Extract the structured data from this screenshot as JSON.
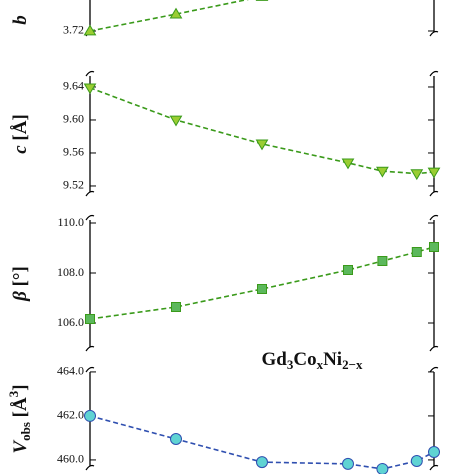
{
  "chart_data": [
    {
      "type": "line",
      "ylabel": [
        {
          "text": "b",
          "pos": "italic"
        }
      ],
      "x": [
        0,
        0.5,
        1.0
      ],
      "xlim": [
        0,
        2
      ],
      "ylim": [
        3.709,
        3.77
      ],
      "yticks": [
        3.72
      ],
      "series": [
        {
          "color": "#3a9a1a",
          "marker": "triangle-up",
          "marker_color": "#9acd32",
          "values": [
            3.72,
            3.7406,
            3.762
          ]
        }
      ]
    },
    {
      "type": "line",
      "ylabel": [
        {
          "text": "c",
          "pos": "italic"
        },
        {
          "text": " [Å]",
          "pos": "normal"
        }
      ],
      "x": [
        0,
        0.5,
        1.0,
        1.5,
        1.7,
        1.9,
        2.0
      ],
      "xlim": [
        0,
        2
      ],
      "ylim": [
        9.503,
        9.663
      ],
      "yticks": [
        9.64,
        {
          "value": 9.6,
          "label": "9.60"
        },
        9.56,
        9.52
      ],
      "series": [
        {
          "color": "#3a9a1a",
          "marker": "triangle-down",
          "marker_color": "#9acd32",
          "values": [
            9.639,
            9.6,
            9.571,
            9.548,
            9.538,
            9.535,
            9.537
          ]
        }
      ]
    },
    {
      "type": "line",
      "ylabel": [
        {
          "text": "β",
          "pos": "italic"
        },
        {
          "text": " [°]",
          "pos": "normal"
        }
      ],
      "x": [
        0,
        0.5,
        1.0,
        1.5,
        1.7,
        1.9,
        2.0
      ],
      "xlim": [
        0,
        2
      ],
      "ylim": [
        104.72,
        110.44
      ],
      "yticks": [
        {
          "value": 110,
          "label": "110.0"
        },
        {
          "value": 108,
          "label": "108.0"
        },
        {
          "value": 106,
          "label": "106.0"
        }
      ],
      "series": [
        {
          "color": "#3a9a1a",
          "marker": "square",
          "marker_color": "#5cb85c",
          "values": [
            106.16,
            106.64,
            107.36,
            108.12,
            108.48,
            108.84,
            109.04
          ]
        }
      ],
      "annotation": [
        {
          "text": "Gd",
          "pos": "normal"
        },
        {
          "text": "3",
          "pos": "sub"
        },
        {
          "text": "Co",
          "pos": "normal"
        },
        {
          "text": "x",
          "pos": "sub"
        },
        {
          "text": "Ni",
          "pos": "normal"
        },
        {
          "text": "2−x",
          "pos": "sub"
        }
      ]
    },
    {
      "type": "line",
      "ylabel": [
        {
          "text": "V",
          "pos": "italic"
        },
        {
          "text": "obs",
          "pos": "sub"
        },
        {
          "text": " [Å",
          "pos": "normal"
        },
        {
          "text": "3",
          "pos": "sup"
        },
        {
          "text": "]",
          "pos": "normal"
        }
      ],
      "x": [
        0,
        0.5,
        1.0,
        1.5,
        1.7,
        1.9,
        2.0
      ],
      "xlim": [
        0,
        2
      ],
      "ylim": [
        459.36,
        464.36
      ],
      "yticks": [
        {
          "value": 464,
          "label": "464.0"
        },
        {
          "value": 462,
          "label": "462.0"
        },
        {
          "value": 460,
          "label": "460.0"
        }
      ],
      "series": [
        {
          "color": "#2f4fb0",
          "marker": "circle",
          "marker_color": "#5fd3d3",
          "values": [
            462.0,
            460.95,
            459.9,
            459.82,
            459.59,
            459.95,
            460.36
          ]
        }
      ]
    }
  ]
}
